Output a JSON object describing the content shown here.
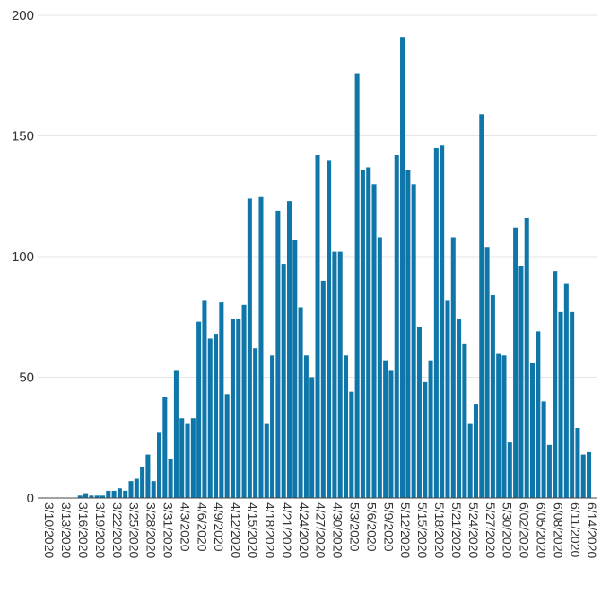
{
  "chart_data": {
    "type": "bar",
    "title": "",
    "xlabel": "",
    "ylabel": "",
    "ylim": [
      0,
      200
    ],
    "yticks": [
      0,
      50,
      100,
      150,
      200
    ],
    "grid": true,
    "bar_color": "#0e76a8",
    "categories": [
      "3/10/2020",
      "3/11/2020",
      "3/12/2020",
      "3/13/2020",
      "3/14/2020",
      "3/15/2020",
      "3/16/2020",
      "3/17/2020",
      "3/18/2020",
      "3/19/2020",
      "3/20/2020",
      "3/21/2020",
      "3/22/2020",
      "3/23/2020",
      "3/24/2020",
      "3/25/2020",
      "3/26/2020",
      "3/27/2020",
      "3/28/2020",
      "3/29/2020",
      "3/30/2020",
      "3/31/2020",
      "4/1/2020",
      "4/2/2020",
      "4/3/2020",
      "4/4/2020",
      "4/5/2020",
      "4/6/2020",
      "4/7/2020",
      "4/8/2020",
      "4/9/2020",
      "4/10/2020",
      "4/11/2020",
      "4/12/2020",
      "4/13/2020",
      "4/14/2020",
      "4/15/2020",
      "4/16/2020",
      "4/17/2020",
      "4/18/2020",
      "4/19/2020",
      "4/20/2020",
      "4/21/2020",
      "4/22/2020",
      "4/23/2020",
      "4/24/2020",
      "4/25/2020",
      "4/26/2020",
      "4/27/2020",
      "4/28/2020",
      "4/29/2020",
      "4/30/2020",
      "5/1/2020",
      "5/2/2020",
      "5/3/2020",
      "5/4/2020",
      "5/5/2020",
      "5/6/2020",
      "5/7/2020",
      "5/8/2020",
      "5/9/2020",
      "5/10/2020",
      "5/11/2020",
      "5/12/2020",
      "5/13/2020",
      "5/14/2020",
      "5/15/2020",
      "5/16/2020",
      "5/17/2020",
      "5/18/2020",
      "5/19/2020",
      "5/20/2020",
      "5/21/2020",
      "5/22/2020",
      "5/23/2020",
      "5/24/2020",
      "5/25/2020",
      "5/26/2020",
      "5/27/2020",
      "5/28/2020",
      "5/29/2020",
      "5/30/2020",
      "5/31/2020",
      "6/01/2020",
      "6/02/2020",
      "6/03/2020",
      "6/04/2020",
      "6/05/2020",
      "6/06/2020",
      "6/07/2020",
      "6/08/2020",
      "6/09/2020",
      "6/10/2020",
      "6/11/2020",
      "6/12/2020",
      "6/13/2020",
      "6/14/2020",
      "6/15/2020",
      "6/16/2020"
    ],
    "values": [
      0,
      0,
      0,
      0,
      0,
      0,
      0,
      1,
      2,
      1,
      1,
      1,
      3,
      3,
      4,
      3,
      7,
      8,
      13,
      18,
      7,
      27,
      42,
      16,
      53,
      33,
      31,
      33,
      73,
      82,
      66,
      68,
      81,
      43,
      74,
      74,
      80,
      124,
      62,
      125,
      31,
      59,
      119,
      97,
      123,
      107,
      79,
      59,
      50,
      142,
      90,
      140,
      102,
      102,
      59,
      44,
      176,
      136,
      137,
      130,
      108,
      57,
      53,
      142,
      191,
      136,
      130,
      71,
      48,
      57,
      145,
      146,
      82,
      108,
      74,
      64,
      31,
      39,
      159,
      104,
      84,
      60,
      59,
      23,
      112,
      96,
      116,
      56,
      69,
      40,
      22,
      94,
      77,
      89,
      77,
      29,
      18,
      19,
      0
    ],
    "xtick_labels": [
      "3/10/2020",
      "3/13/2020",
      "3/16/2020",
      "3/19/2020",
      "3/22/2020",
      "3/25/2020",
      "3/28/2020",
      "3/31/2020",
      "4/3/2020",
      "4/6/2020",
      "4/9/2020",
      "4/12/2020",
      "4/15/2020",
      "4/18/2020",
      "4/21/2020",
      "4/24/2020",
      "4/27/2020",
      "4/30/2020",
      "5/3/2020",
      "5/6/2020",
      "5/9/2020",
      "5/12/2020",
      "5/15/2020",
      "5/18/2020",
      "5/21/2020",
      "5/24/2020",
      "5/27/2020",
      "5/30/2020",
      "6/02/2020",
      "6/05/2020",
      "6/08/2020",
      "6/11/2020",
      "6/14/2020"
    ]
  }
}
